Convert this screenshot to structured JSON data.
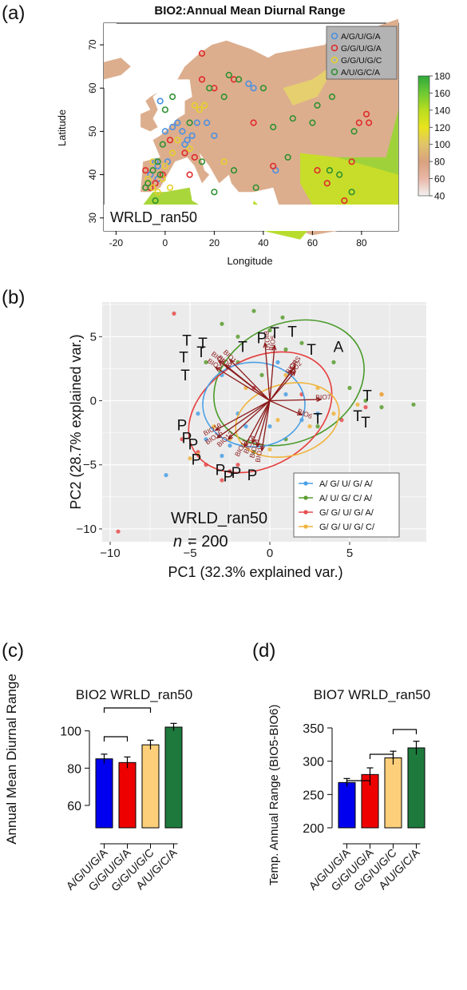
{
  "panels": {
    "a": "(a)",
    "b": "(b)",
    "c": "(c)",
    "d": "(d)"
  },
  "chart_data": [
    {
      "panel": "a",
      "type": "scatter",
      "title": "BIO2:Annual Mean Diurnal Range",
      "xlabel": "Longitude",
      "ylabel": "Latitude",
      "xlim": [
        -25,
        95
      ],
      "ylim": [
        27,
        75
      ],
      "xticks": [
        -20,
        0,
        20,
        40,
        60,
        80
      ],
      "yticks": [
        30,
        40,
        50,
        60,
        70
      ],
      "map_label": "WRLD_ran50",
      "legend_position": "top-right",
      "colorbar": {
        "min": 40,
        "max": 180,
        "ticks": [
          40,
          60,
          80,
          100,
          120,
          140,
          160,
          180
        ],
        "colors": [
          "#f2f2f2",
          "#e9b7a8",
          "#d8a27e",
          "#e1c46a",
          "#e9e41e",
          "#b9dd1f",
          "#6fc934",
          "#2ea93b"
        ]
      },
      "series": [
        {
          "name": "A/G/U/G/A",
          "color": "#4a90e2",
          "points": [
            [
              -6,
              40
            ],
            [
              -3,
              42
            ],
            [
              0,
              50
            ],
            [
              3,
              51
            ],
            [
              5,
              52
            ],
            [
              7,
              50
            ],
            [
              9,
              48
            ],
            [
              11,
              49
            ],
            [
              13,
              52
            ],
            [
              -2,
              57
            ],
            [
              17,
              52
            ],
            [
              20,
              49
            ],
            [
              34,
              61
            ],
            [
              36,
              60
            ],
            [
              -4,
              43
            ],
            [
              45,
              41
            ],
            [
              -3,
              39
            ],
            [
              1,
              43
            ],
            [
              8,
              47
            ]
          ]
        },
        {
          "name": "G/G/U/G/A",
          "color": "#e02a2a",
          "points": [
            [
              -8,
              41
            ],
            [
              -6,
              37
            ],
            [
              -4,
              38
            ],
            [
              -1,
              40
            ],
            [
              2,
              48
            ],
            [
              8,
              45
            ],
            [
              12,
              44
            ],
            [
              15,
              68
            ],
            [
              15,
              62
            ],
            [
              20,
              60
            ],
            [
              28,
              62
            ],
            [
              36,
              52
            ],
            [
              44,
              42
            ],
            [
              76,
              43
            ],
            [
              79,
              52
            ],
            [
              82,
              54
            ],
            [
              83,
              52
            ],
            [
              66,
              38
            ],
            [
              73,
              34
            ],
            [
              62,
              41
            ],
            [
              10,
              40
            ]
          ]
        },
        {
          "name": "G/G/U/G/C",
          "color": "#e5d12a",
          "points": [
            [
              -7,
              39
            ],
            [
              -5,
              37
            ],
            [
              -3,
              36
            ],
            [
              -1,
              39
            ],
            [
              0,
              42
            ],
            [
              3,
              45
            ],
            [
              5,
              48
            ],
            [
              10,
              46
            ],
            [
              12,
              56
            ],
            [
              14,
              55
            ],
            [
              16,
              56
            ],
            [
              24,
              43
            ],
            [
              -5,
              43
            ],
            [
              2,
              37
            ]
          ]
        },
        {
          "name": "A/U/G/C/A",
          "color": "#2e9130",
          "points": [
            [
              -13,
              29
            ],
            [
              -7,
              38
            ],
            [
              -5,
              41
            ],
            [
              -3,
              43
            ],
            [
              -1,
              47
            ],
            [
              0,
              55
            ],
            [
              3,
              58
            ],
            [
              10,
              52
            ],
            [
              18,
              60
            ],
            [
              24,
              58
            ],
            [
              26,
              63
            ],
            [
              30,
              62
            ],
            [
              40,
              60
            ],
            [
              44,
              51
            ],
            [
              52,
              53
            ],
            [
              60,
              52
            ],
            [
              62,
              56
            ],
            [
              68,
              58
            ],
            [
              77,
              50
            ],
            [
              71,
              40
            ],
            [
              76,
              36
            ],
            [
              67,
              41
            ],
            [
              50,
              44
            ],
            [
              37,
              37
            ],
            [
              28,
              41
            ],
            [
              15,
              43
            ],
            [
              -8,
              37
            ],
            [
              -4,
              34
            ],
            [
              20,
              36
            ],
            [
              -2,
              40
            ]
          ]
        }
      ]
    },
    {
      "panel": "b",
      "type": "scatter",
      "xlabel": "PC1 (32.3% explained var.)",
      "ylabel": "PC2 (28.7% explained var.)",
      "xlim": [
        -10.5,
        9.8
      ],
      "ylim": [
        -11,
        7.7
      ],
      "xticks": [
        -10,
        -5,
        0,
        5
      ],
      "yticks": [
        -10,
        -5,
        0,
        5
      ],
      "annotation": "WRLD_ran50",
      "n_label": "n",
      "n_value": "= 200",
      "legend_position": "bottom-right",
      "series": [
        {
          "name": "A/ G/ U/ G/ A/",
          "color": "#4aa0e6",
          "points": [
            [
              -6.5,
              -5.8
            ],
            [
              -4,
              -3
            ],
            [
              -2,
              -1
            ],
            [
              -1,
              1
            ],
            [
              -2.5,
              -3.5
            ],
            [
              1,
              0.5
            ],
            [
              3,
              -1
            ],
            [
              -3,
              2
            ],
            [
              0.5,
              3
            ],
            [
              2,
              -1.5
            ],
            [
              -1.5,
              -2
            ],
            [
              -4.5,
              -1
            ],
            [
              0,
              -2
            ],
            [
              -3,
              -4.3
            ]
          ]
        },
        {
          "name": "A/ U/ G/ C/ A/",
          "color": "#5a9e2f",
          "points": [
            [
              -1,
              7
            ],
            [
              0.8,
              6.5
            ],
            [
              -2,
              5
            ],
            [
              2,
              4.5
            ],
            [
              4,
              3
            ],
            [
              5,
              1
            ],
            [
              9,
              -0.3
            ],
            [
              6,
              0
            ],
            [
              3,
              -2
            ],
            [
              1,
              -3
            ],
            [
              -1,
              -4
            ],
            [
              -2,
              3
            ],
            [
              0,
              5.5
            ],
            [
              -4,
              3
            ],
            [
              -3,
              6
            ],
            [
              1,
              4
            ],
            [
              7,
              -0.5
            ],
            [
              -0.5,
              2
            ]
          ]
        },
        {
          "name": "G/ G/ U/ G/ A/",
          "color": "#e84c4c",
          "points": [
            [
              -9.5,
              -10.2
            ],
            [
              -6,
              6.8
            ],
            [
              -4,
              -5
            ],
            [
              -3,
              -6.2
            ],
            [
              -5.5,
              -3
            ],
            [
              -2,
              -5
            ],
            [
              7,
              0.5
            ],
            [
              4.5,
              -1.5
            ],
            [
              2,
              0.5
            ],
            [
              -1,
              1
            ],
            [
              -2.5,
              -5.5
            ],
            [
              6,
              -0.5
            ],
            [
              -4.5,
              -4
            ]
          ]
        },
        {
          "name": "G/ G/ U/ G/ C/",
          "color": "#f0b43c",
          "points": [
            [
              -5,
              -4.5
            ],
            [
              -4.5,
              -4.2
            ],
            [
              -2.5,
              -3
            ],
            [
              0.5,
              -1.5
            ],
            [
              2.5,
              -2
            ],
            [
              4,
              -1
            ],
            [
              7,
              0.5
            ],
            [
              5.5,
              -0.3
            ],
            [
              -1.5,
              1
            ],
            [
              1,
              2
            ],
            [
              3,
              1
            ],
            [
              -3.5,
              -2
            ],
            [
              0,
              -3.8
            ]
          ]
        }
      ],
      "ellipses": [
        {
          "series": "A/ U/ G/ C/ A/",
          "cx": 1.2,
          "cy": 1.4,
          "rx": 4.9,
          "ry": 4.6,
          "angle": -25,
          "color": "#4a9a2a"
        },
        {
          "series": "G/ G/ U/ G/ A/",
          "cx": -0.6,
          "cy": -0.9,
          "rx": 4.8,
          "ry": 4.2,
          "angle": -30,
          "color": "#e63b3b"
        },
        {
          "series": "A/ G/ U/ G/ A/",
          "cx": -1.0,
          "cy": -0.3,
          "rx": 3.2,
          "ry": 3.3,
          "angle": 0,
          "color": "#4aa0e6"
        },
        {
          "series": "G/ G/ U/ G/ C/",
          "cx": 1.1,
          "cy": -1.5,
          "rx": 3.3,
          "ry": 2.8,
          "angle": -15,
          "color": "#f0b43c"
        }
      ],
      "loadings": [
        {
          "label": "BIO10",
          "x": -0.3,
          "y": 4.5
        },
        {
          "label": "BIO5",
          "x": 0.3,
          "y": 4.3
        },
        {
          "label": "BIO8",
          "x": -3.2,
          "y": 3.1
        },
        {
          "label": "BIO3",
          "x": -3.4,
          "y": 2.6
        },
        {
          "label": "BIO1",
          "x": -2.5,
          "y": 3.2
        },
        {
          "label": "BIO9",
          "x": -2.8,
          "y": 2.8
        },
        {
          "label": "BIO4",
          "x": 1.4,
          "y": 2.4
        },
        {
          "label": "BIO2",
          "x": 1.6,
          "y": 2.3
        },
        {
          "label": "BIO7",
          "x": 3.2,
          "y": 0.1
        },
        {
          "label": "BIO6",
          "x": 2.0,
          "y": -1.1
        },
        {
          "label": "BIO19",
          "x": -3.4,
          "y": -2.3
        },
        {
          "label": "BIO15",
          "x": -3.3,
          "y": -2.9
        },
        {
          "label": "BIO12",
          "x": -2.6,
          "y": -3.0
        },
        {
          "label": "BIO11",
          "x": -1.6,
          "y": -3.6
        },
        {
          "label": "BIO18",
          "x": -0.8,
          "y": -3.6
        },
        {
          "label": "BIO13",
          "x": -0.5,
          "y": -3.9
        },
        {
          "label": "GPS",
          "x": 1.6,
          "y": 2.7
        },
        {
          "label": "BIO14",
          "x": -1.1,
          "y": -3.3
        }
      ],
      "letters": [
        {
          "text": "T",
          "x": -5.2,
          "y": 4.3
        },
        {
          "text": "T",
          "x": -4.2,
          "y": 4.1
        },
        {
          "text": "T",
          "x": -4.3,
          "y": 3.4
        },
        {
          "text": "T",
          "x": -5.4,
          "y": 3.0
        },
        {
          "text": "T",
          "x": -5.3,
          "y": 1.6
        },
        {
          "text": "T",
          "x": -1.7,
          "y": 3.8
        },
        {
          "text": "T",
          "x": 0.3,
          "y": 4.9
        },
        {
          "text": "T",
          "x": 1.4,
          "y": 5.0
        },
        {
          "text": "T",
          "x": 2.6,
          "y": 3.6
        },
        {
          "text": "A",
          "x": 4.3,
          "y": 3.8
        },
        {
          "text": "P",
          "x": -0.5,
          "y": 4.5
        },
        {
          "text": "T",
          "x": 6.1,
          "y": 0.0
        },
        {
          "text": "T",
          "x": 3.0,
          "y": -1.8
        },
        {
          "text": "T",
          "x": 5.5,
          "y": -1.6
        },
        {
          "text": "T",
          "x": 6.0,
          "y": -2.1
        },
        {
          "text": "P",
          "x": -5.5,
          "y": -2.3
        },
        {
          "text": "P",
          "x": -5.2,
          "y": -3.3
        },
        {
          "text": "P",
          "x": -4.8,
          "y": -3.8
        },
        {
          "text": "P",
          "x": -4.6,
          "y": -5.0
        },
        {
          "text": "P",
          "x": -3.1,
          "y": -5.8
        },
        {
          "text": "P",
          "x": -2.6,
          "y": -6.3
        },
        {
          "text": "P",
          "x": -2.1,
          "y": -6.0
        },
        {
          "text": "P",
          "x": -1.1,
          "y": -6.2
        }
      ]
    },
    {
      "panel": "c",
      "type": "bar",
      "title": "BIO2 WRLD_ran50",
      "ylabel": "Annual Mean Diurnal Range",
      "categories": [
        "A/G/U/G/A",
        "G/G/U/G/A",
        "G/G/U/G/C",
        "A/U/G/C/A"
      ],
      "values": [
        85,
        83,
        92.5,
        102
      ],
      "errors": [
        2.5,
        3,
        2.5,
        2
      ],
      "colors": [
        "#0000ee",
        "#ee0000",
        "#fdcf7a",
        "#1e7a3c"
      ],
      "ylim": [
        48,
        108
      ],
      "yticks": [
        60,
        80,
        100
      ],
      "brackets": [
        [
          0,
          1
        ],
        [
          0,
          2
        ]
      ]
    },
    {
      "panel": "d",
      "type": "bar",
      "title": "BIO7 WRLD_ran50",
      "ylabel": "Temp. Annual Range (BIO5-BIO6)",
      "categories": [
        "A/G/U/G/A",
        "G/G/U/G/A",
        "G/G/U/G/C",
        "A/U/G/C/A"
      ],
      "values": [
        268,
        280,
        305,
        320
      ],
      "errors": [
        6,
        10,
        10,
        10
      ],
      "colors": [
        "#0000ee",
        "#ee0000",
        "#fdcf7a",
        "#1e7a3c"
      ],
      "ylim": [
        200,
        350
      ],
      "yticks": [
        200,
        250,
        300,
        350
      ],
      "brackets": [
        [
          0,
          1
        ],
        [
          1,
          2
        ],
        [
          2,
          3
        ]
      ]
    }
  ]
}
